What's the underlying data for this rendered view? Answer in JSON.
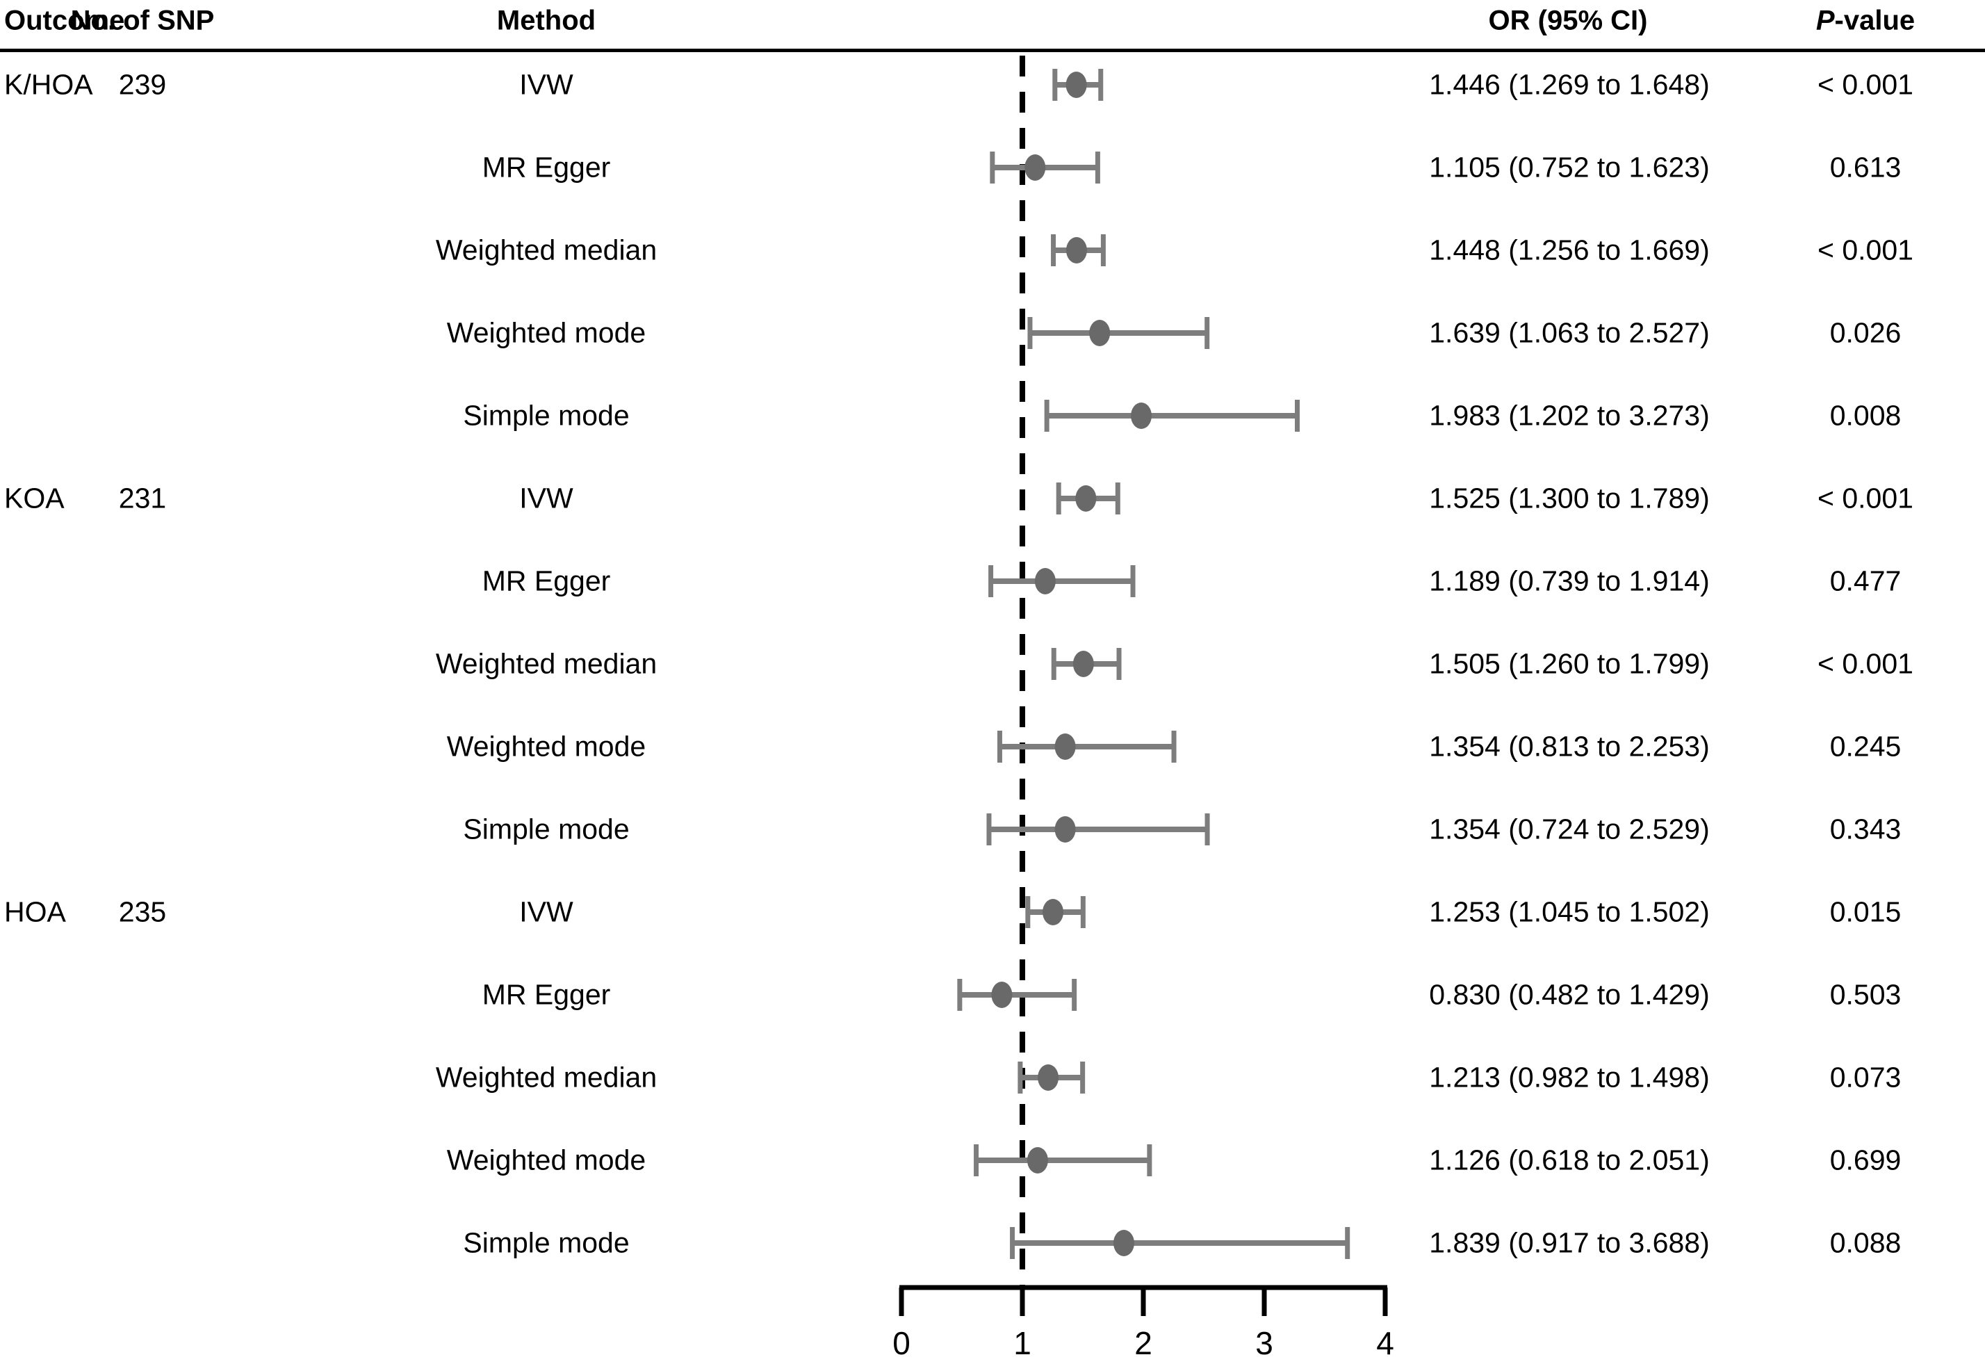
{
  "header": {
    "outcome": "Outcome",
    "snp": "No. of SNP",
    "method": "Method",
    "or_ci": "OR (95% CI)",
    "p_italic": "P",
    "p_rest": "-value"
  },
  "colors": {
    "text": "#000000",
    "header_rule": "#000000",
    "reference_line": "#000000",
    "axis": "#000000",
    "error_bar": "#7d7d7d",
    "marker_fill": "#696969"
  },
  "chart_data": {
    "type": "forest",
    "xlim": [
      0,
      4
    ],
    "reference_line": 1,
    "xtick_labels": [
      "0",
      "1",
      "2",
      "3",
      "4"
    ],
    "xtick_values": [
      0,
      1,
      2,
      3,
      4
    ],
    "legend": "none",
    "rows": [
      {
        "outcome": "K/HOA",
        "snp": "239",
        "method": "IVW",
        "or": 1.446,
        "lo": 1.269,
        "hi": 1.648,
        "or_ci": "1.446 (1.269 to 1.648)",
        "p": "< 0.001"
      },
      {
        "outcome": "",
        "snp": "",
        "method": "MR Egger",
        "or": 1.105,
        "lo": 0.752,
        "hi": 1.623,
        "or_ci": "1.105 (0.752 to 1.623)",
        "p": "0.613"
      },
      {
        "outcome": "",
        "snp": "",
        "method": "Weighted median",
        "or": 1.448,
        "lo": 1.256,
        "hi": 1.669,
        "or_ci": "1.448 (1.256 to 1.669)",
        "p": "< 0.001"
      },
      {
        "outcome": "",
        "snp": "",
        "method": "Weighted mode",
        "or": 1.639,
        "lo": 1.063,
        "hi": 2.527,
        "or_ci": "1.639 (1.063 to 2.527)",
        "p": "0.026"
      },
      {
        "outcome": "",
        "snp": "",
        "method": "Simple mode",
        "or": 1.983,
        "lo": 1.202,
        "hi": 3.273,
        "or_ci": "1.983 (1.202 to 3.273)",
        "p": "0.008"
      },
      {
        "outcome": "KOA",
        "snp": "231",
        "method": "IVW",
        "or": 1.525,
        "lo": 1.3,
        "hi": 1.789,
        "or_ci": "1.525 (1.300 to 1.789)",
        "p": "< 0.001"
      },
      {
        "outcome": "",
        "snp": "",
        "method": "MR Egger",
        "or": 1.189,
        "lo": 0.739,
        "hi": 1.914,
        "or_ci": "1.189 (0.739 to 1.914)",
        "p": "0.477"
      },
      {
        "outcome": "",
        "snp": "",
        "method": "Weighted median",
        "or": 1.505,
        "lo": 1.26,
        "hi": 1.799,
        "or_ci": "1.505 (1.260 to 1.799)",
        "p": "< 0.001"
      },
      {
        "outcome": "",
        "snp": "",
        "method": "Weighted mode",
        "or": 1.354,
        "lo": 0.813,
        "hi": 2.253,
        "or_ci": "1.354 (0.813 to 2.253)",
        "p": "0.245"
      },
      {
        "outcome": "",
        "snp": "",
        "method": "Simple mode",
        "or": 1.354,
        "lo": 0.724,
        "hi": 2.529,
        "or_ci": "1.354 (0.724 to 2.529)",
        "p": "0.343"
      },
      {
        "outcome": "HOA",
        "snp": "235",
        "method": "IVW",
        "or": 1.253,
        "lo": 1.045,
        "hi": 1.502,
        "or_ci": "1.253 (1.045 to 1.502)",
        "p": "0.015"
      },
      {
        "outcome": "",
        "snp": "",
        "method": "MR Egger",
        "or": 0.83,
        "lo": 0.482,
        "hi": 1.429,
        "or_ci": "0.830 (0.482 to 1.429)",
        "p": "0.503"
      },
      {
        "outcome": "",
        "snp": "",
        "method": "Weighted median",
        "or": 1.213,
        "lo": 0.982,
        "hi": 1.498,
        "or_ci": "1.213 (0.982 to 1.498)",
        "p": "0.073"
      },
      {
        "outcome": "",
        "snp": "",
        "method": "Weighted mode",
        "or": 1.126,
        "lo": 0.618,
        "hi": 2.051,
        "or_ci": "1.126 (0.618 to 2.051)",
        "p": "0.699"
      },
      {
        "outcome": "",
        "snp": "",
        "method": "Simple mode",
        "or": 1.839,
        "lo": 0.917,
        "hi": 3.688,
        "or_ci": "1.839 (0.917 to 3.688)",
        "p": "0.088"
      }
    ]
  }
}
